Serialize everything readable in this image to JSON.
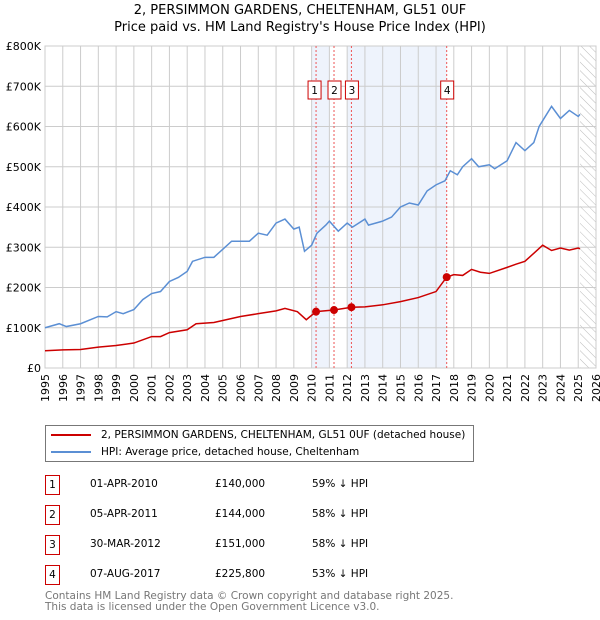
{
  "title_line1": "2, PERSIMMON GARDENS, CHELTENHAM, GL51 0UF",
  "title_line2": "Price paid vs. HM Land Registry's House Price Index (HPI)",
  "chart_data": {
    "type": "line",
    "xlim": [
      1995,
      2026
    ],
    "ylim": [
      0,
      800000
    ],
    "yticks": [
      0,
      100000,
      200000,
      300000,
      400000,
      500000,
      600000,
      700000,
      800000
    ],
    "ytick_labels": [
      "£0",
      "£100K",
      "£200K",
      "£300K",
      "£400K",
      "£500K",
      "£600K",
      "£700K",
      "£800K"
    ],
    "xticks": [
      1995,
      1996,
      1997,
      1998,
      1999,
      2000,
      2001,
      2002,
      2003,
      2004,
      2005,
      2006,
      2007,
      2008,
      2009,
      2010,
      2011,
      2012,
      2013,
      2014,
      2015,
      2016,
      2017,
      2018,
      2019,
      2020,
      2021,
      2022,
      2023,
      2024,
      2025,
      2026
    ],
    "grid": true,
    "series": [
      {
        "name": "2, PERSIMMON GARDENS, CHELTENHAM, GL51 0UF (detached house)",
        "color": "#cc0000",
        "x": [
          1995,
          1996,
          1997,
          1998,
          1999,
          2000,
          2001,
          2001.5,
          2002,
          2003,
          2003.5,
          2004.5,
          2005,
          2006,
          2007,
          2008,
          2008.5,
          2009.2,
          2009.7,
          2010.25,
          2011.25,
          2012.25,
          2013,
          2014,
          2015,
          2016,
          2017,
          2017.6,
          2018,
          2018.5,
          2019,
          2019.5,
          2020,
          2021,
          2021.5,
          2022,
          2022.5,
          2023,
          2023.5,
          2024,
          2024.5,
          2025,
          2025.1
        ],
        "y": [
          43000,
          45000,
          46000,
          52000,
          56000,
          62000,
          78000,
          78000,
          88000,
          95000,
          110000,
          113000,
          118000,
          128000,
          135000,
          142000,
          148000,
          140000,
          120000,
          140000,
          144000,
          151000,
          152000,
          157000,
          165000,
          175000,
          190000,
          225800,
          232000,
          230000,
          245000,
          238000,
          235000,
          250000,
          258000,
          265000,
          285000,
          305000,
          292000,
          298000,
          293000,
          298000,
          296000
        ]
      },
      {
        "name": "HPI: Average price, detached house, Cheltenham",
        "color": "#5b8fd4",
        "x": [
          1995,
          1995.8,
          1996.2,
          1997,
          1998,
          1998.5,
          1999,
          1999.4,
          2000,
          2000.5,
          2001,
          2001.5,
          2002,
          2002.5,
          2003,
          2003.3,
          2004,
          2004.5,
          2005,
          2005.5,
          2006,
          2006.5,
          2007,
          2007.5,
          2008,
          2008.5,
          2009,
          2009.3,
          2009.6,
          2010,
          2010.3,
          2010.8,
          2011,
          2011.5,
          2012,
          2012.3,
          2013,
          2013.2,
          2014,
          2014.5,
          2015,
          2015.5,
          2016,
          2016.5,
          2017,
          2017.5,
          2017.8,
          2018.2,
          2018.5,
          2019,
          2019.4,
          2020,
          2020.3,
          2021,
          2021.5,
          2022,
          2022.5,
          2022.8,
          2023.5,
          2024,
          2024.5,
          2025,
          2025.1
        ],
        "y": [
          100000,
          110000,
          103000,
          110000,
          128000,
          127000,
          140000,
          135000,
          145000,
          170000,
          185000,
          190000,
          215000,
          225000,
          240000,
          265000,
          275000,
          275000,
          295000,
          315000,
          315000,
          315000,
          335000,
          330000,
          360000,
          370000,
          345000,
          350000,
          290000,
          305000,
          335000,
          355000,
          365000,
          340000,
          360000,
          350000,
          370000,
          355000,
          365000,
          375000,
          400000,
          410000,
          405000,
          440000,
          455000,
          465000,
          490000,
          480000,
          500000,
          520000,
          500000,
          505000,
          495000,
          515000,
          560000,
          540000,
          560000,
          600000,
          650000,
          620000,
          640000,
          625000,
          630000
        ]
      }
    ],
    "sales": [
      {
        "id": "1",
        "x": 2010.25,
        "y": 140000
      },
      {
        "id": "2",
        "x": 2011.26,
        "y": 144000
      },
      {
        "id": "3",
        "x": 2012.24,
        "y": 151000
      },
      {
        "id": "4",
        "x": 2017.6,
        "y": 225800
      }
    ],
    "shaded_ranges": [
      [
        2010.0,
        2011.0
      ],
      [
        2012.0,
        2017.6
      ]
    ],
    "forecast_from": 2025.1
  },
  "legend": {
    "property": "2, PERSIMMON GARDENS, CHELTENHAM, GL51 0UF (detached house)",
    "hpi": "HPI: Average price, detached house, Cheltenham"
  },
  "transactions": [
    {
      "id": "1",
      "date": "01-APR-2010",
      "price": "£140,000",
      "hpi": "59% ↓ HPI"
    },
    {
      "id": "2",
      "date": "05-APR-2011",
      "price": "£144,000",
      "hpi": "58% ↓ HPI"
    },
    {
      "id": "3",
      "date": "30-MAR-2012",
      "price": "£151,000",
      "hpi": "58% ↓ HPI"
    },
    {
      "id": "4",
      "date": "07-AUG-2017",
      "price": "£225,800",
      "hpi": "53% ↓ HPI"
    }
  ],
  "footer": {
    "line1": "Contains HM Land Registry data © Crown copyright and database right 2025.",
    "line2": "This data is licensed under the Open Government Licence v3.0."
  },
  "colors": {
    "property": "#cc0000",
    "hpi": "#5b8fd4",
    "shade": "#eef3fc"
  }
}
